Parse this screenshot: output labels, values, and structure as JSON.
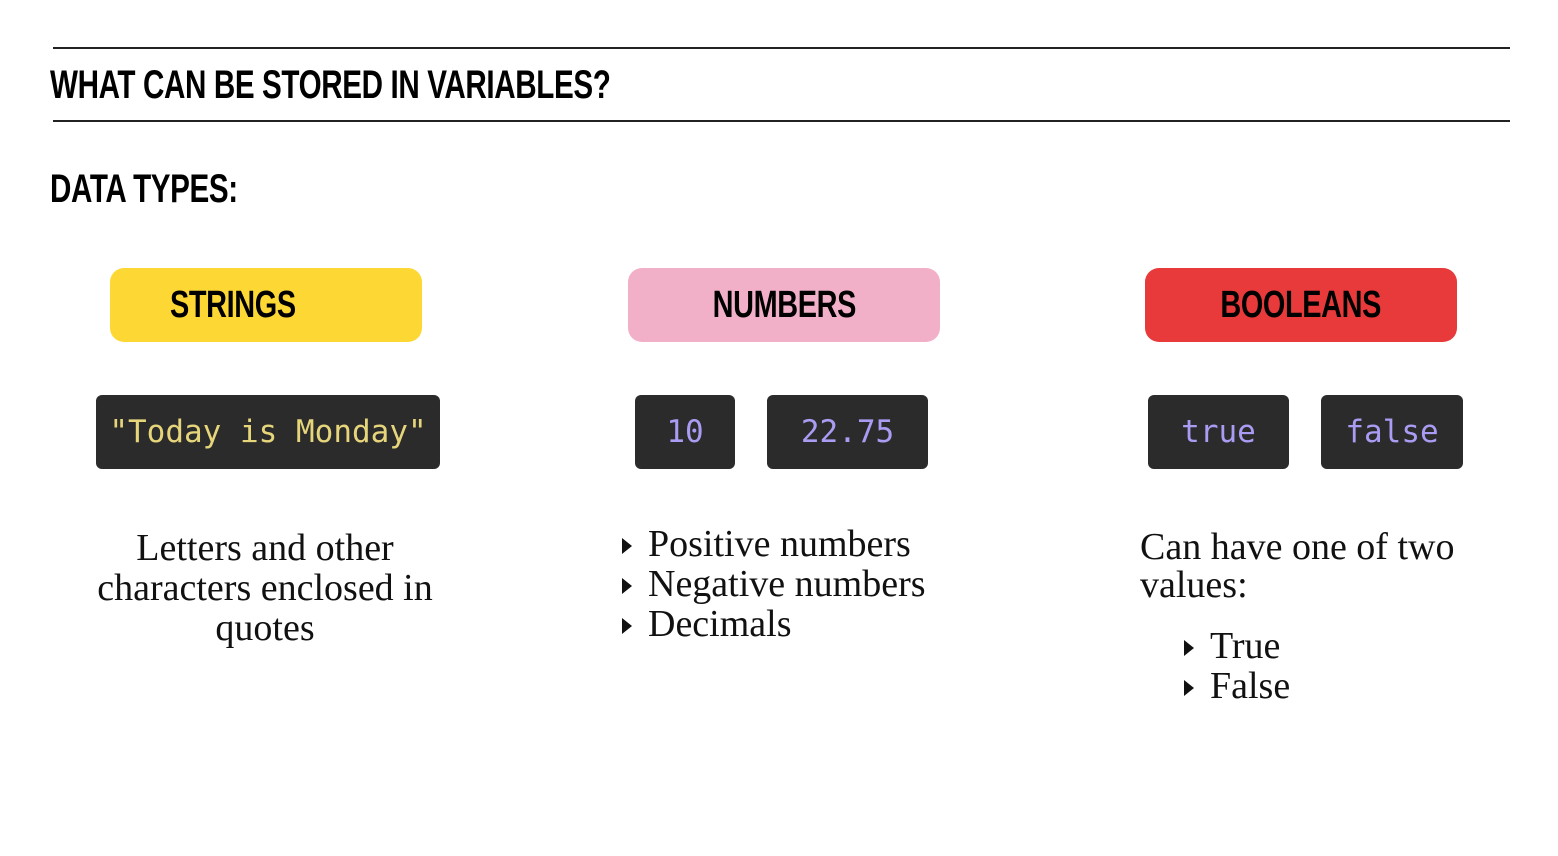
{
  "slide": {
    "title": "WHAT CAN BE STORED IN VARIABLES?",
    "section_heading": "DATA TYPES:"
  },
  "columns": {
    "strings": {
      "label": "STRINGS",
      "color": "#fdd835",
      "examples": [
        "\"Today is Monday\""
      ],
      "description": "Letters and other characters enclosed in quotes"
    },
    "numbers": {
      "label": "NUMBERS",
      "color": "#f2b0c8",
      "examples": [
        "10",
        "22.75"
      ],
      "bullets": [
        "Positive numbers",
        "Negative numbers",
        "Decimals"
      ]
    },
    "booleans": {
      "label": "BOOLEANS",
      "color": "#e83a3a",
      "examples": [
        "true",
        "false"
      ],
      "description": "Can have one of two values:",
      "bullets": [
        "True",
        "False"
      ]
    }
  },
  "icons": {
    "bullet": "triangle-right-icon"
  }
}
